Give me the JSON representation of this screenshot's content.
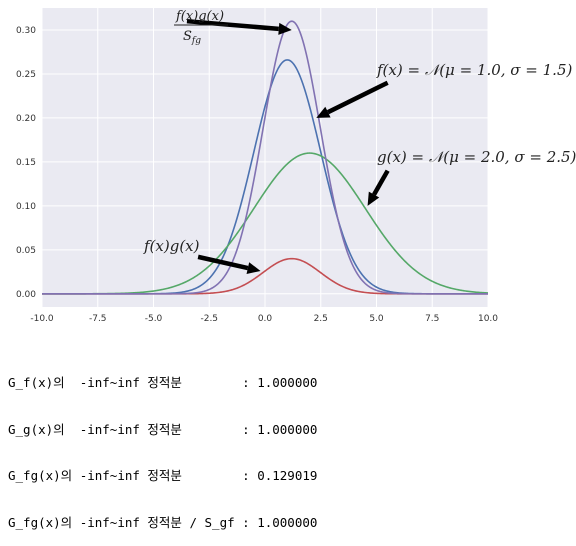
{
  "chart_data": {
    "type": "line",
    "xlim": [
      -10,
      10
    ],
    "ylim": [
      -0.015,
      0.325
    ],
    "grid": true,
    "xticks": [
      -10.0,
      -7.5,
      -5.0,
      -2.5,
      0.0,
      2.5,
      5.0,
      7.5,
      10.0
    ],
    "xtick_labels": [
      "-10.0",
      "-7.5",
      "-5.0",
      "-2.5",
      "0.0",
      "2.5",
      "5.0",
      "7.5",
      "10.0"
    ],
    "yticks": [
      0.0,
      0.05,
      0.1,
      0.15,
      0.2,
      0.25,
      0.3
    ],
    "ytick_labels": [
      "0.00",
      "0.05",
      "0.10",
      "0.15",
      "0.20",
      "0.25",
      "0.30"
    ],
    "series": [
      {
        "color": "#4c72b0",
        "mu": 1.0,
        "sigma": 1.5,
        "peak": 0.266,
        "peak_x": 1.0
      },
      {
        "color": "#55a868",
        "mu": 2.0,
        "sigma": 2.5,
        "peak": 0.16,
        "peak_x": 2.0
      },
      {
        "color": "#c44e52",
        "mu": 1.2,
        "sigma": 1.2862,
        "peak": 0.04,
        "peak_x": 1.2
      },
      {
        "color": "#8172b2",
        "mu": 1.2,
        "sigma": 1.2862,
        "peak": 0.31,
        "peak_x": 1.2
      }
    ],
    "annotations": [
      {
        "label": "f(x)g(x) / S_fg",
        "numerator": "f(x)g(x)",
        "denominator": "S",
        "denominator_sub": "fg",
        "xy": [
          1.2,
          0.3
        ],
        "xytext": [
          -3.5,
          0.31
        ]
      },
      {
        "label": "f(x) = N(μ = 1.0, σ = 1.5)",
        "lhs": "f(x) = ",
        "script_n": "𝒩",
        "rhs": "(μ = 1.0, σ = 1.5)",
        "xy": [
          2.3,
          0.2
        ],
        "xytext": [
          5.5,
          0.24
        ]
      },
      {
        "label": "g(x) = N(μ = 2.0, σ = 2.5)",
        "lhs": "g(x) = ",
        "script_n": "𝒩",
        "rhs": "(μ = 2.0, σ = 2.5)",
        "xy": [
          4.6,
          0.1
        ],
        "xytext": [
          5.5,
          0.14
        ]
      },
      {
        "label": "f(x)g(x)",
        "text": "f(x)g(x)",
        "xy": [
          -0.2,
          0.026
        ],
        "xytext": [
          -3.0,
          0.042
        ]
      }
    ]
  },
  "console": {
    "lines": [
      "G_f(x)의  -inf~inf 정적분        : 1.000000",
      "G_g(x)의  -inf~inf 정적분        : 1.000000",
      "G_fg(x)의 -inf~inf 정적분        : 0.129019",
      "G_fg(x)의 -inf~inf 정적분 / S_gf : 1.000000"
    ]
  }
}
